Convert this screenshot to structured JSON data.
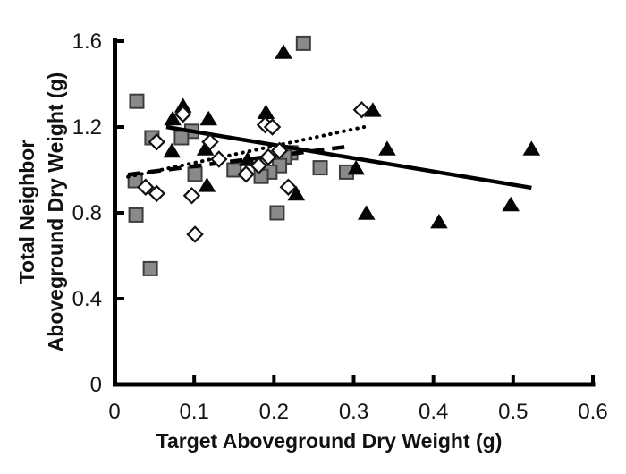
{
  "figure": {
    "background": "#ffffff",
    "plot_border": "none"
  },
  "chart_data": {
    "type": "scatter",
    "title": "",
    "xlabel": "Target Aboveground Dry Weight (g)",
    "ylabel_line1": "Total Neighbor",
    "ylabel_line2": "Aboveground Dry Weight  (g)",
    "xlim": [
      0,
      0.6
    ],
    "ylim": [
      0,
      1.6
    ],
    "grid": false,
    "legend_position": "none",
    "axis_color": "#000000",
    "xticks": {
      "values": [
        0,
        0.1,
        0.2,
        0.3,
        0.4,
        0.5,
        0.6
      ],
      "labels": [
        "0",
        "0.1",
        "0.2",
        "0.3",
        "0.4",
        "0.5",
        "0.6"
      ]
    },
    "yticks": {
      "values": [
        0,
        0.4,
        0.8,
        1.2,
        1.6
      ],
      "labels": [
        "0",
        "0.4",
        "0.8",
        "1.2",
        "1.6"
      ]
    },
    "series": [
      {
        "name": "gray-square",
        "marker": "square",
        "fill": "#8a8a8a",
        "stroke": "#3d3d3d",
        "points": [
          [
            0.028,
            1.32
          ],
          [
            0.097,
            1.18
          ],
          [
            0.084,
            1.15
          ],
          [
            0.047,
            1.15
          ],
          [
            0.237,
            1.59
          ],
          [
            0.221,
            1.08
          ],
          [
            0.213,
            1.06
          ],
          [
            0.207,
            1.02
          ],
          [
            0.195,
            0.99
          ],
          [
            0.184,
            0.97
          ],
          [
            0.101,
            0.98
          ],
          [
            0.15,
            1.0
          ],
          [
            0.026,
            0.95
          ],
          [
            0.027,
            0.79
          ],
          [
            0.204,
            0.8
          ],
          [
            0.045,
            0.54
          ],
          [
            0.258,
            1.01
          ],
          [
            0.291,
            0.99
          ]
        ]
      },
      {
        "name": "filled-triangle",
        "marker": "triangle",
        "fill": "#050505",
        "stroke": "none",
        "points": [
          [
            0.212,
            1.55
          ],
          [
            0.086,
            1.3
          ],
          [
            0.073,
            1.24
          ],
          [
            0.118,
            1.24
          ],
          [
            0.19,
            1.27
          ],
          [
            0.072,
            1.09
          ],
          [
            0.114,
            1.1
          ],
          [
            0.324,
            1.28
          ],
          [
            0.342,
            1.1
          ],
          [
            0.167,
            1.05
          ],
          [
            0.116,
            0.93
          ],
          [
            0.523,
            1.1
          ],
          [
            0.303,
            1.01
          ],
          [
            0.497,
            0.84
          ],
          [
            0.316,
            0.8
          ],
          [
            0.407,
            0.76
          ],
          [
            0.228,
            0.89
          ]
        ]
      },
      {
        "name": "open-diamond",
        "marker": "diamond",
        "fill": "#ffffff",
        "stroke": "#111111",
        "points": [
          [
            0.086,
            1.26
          ],
          [
            0.189,
            1.21
          ],
          [
            0.198,
            1.2
          ],
          [
            0.053,
            1.13
          ],
          [
            0.12,
            1.13
          ],
          [
            0.207,
            1.09
          ],
          [
            0.31,
            1.28
          ],
          [
            0.131,
            1.05
          ],
          [
            0.181,
            1.02
          ],
          [
            0.039,
            0.92
          ],
          [
            0.053,
            0.89
          ],
          [
            0.097,
            0.88
          ],
          [
            0.101,
            0.7
          ],
          [
            0.218,
            0.92
          ],
          [
            0.165,
            0.98
          ],
          [
            0.193,
            1.06
          ]
        ]
      }
    ],
    "trendlines": [
      {
        "name": "triangle-fit",
        "style": "solid",
        "from": [
          0.065,
          1.2
        ],
        "to": [
          0.523,
          0.917
        ]
      },
      {
        "name": "square-fit",
        "style": "dashed",
        "from": [
          0.017,
          0.978
        ],
        "to": [
          0.291,
          1.108
        ]
      },
      {
        "name": "diamond-fit",
        "style": "dotted",
        "from": [
          0.017,
          0.968
        ],
        "to": [
          0.313,
          1.2
        ]
      }
    ]
  }
}
